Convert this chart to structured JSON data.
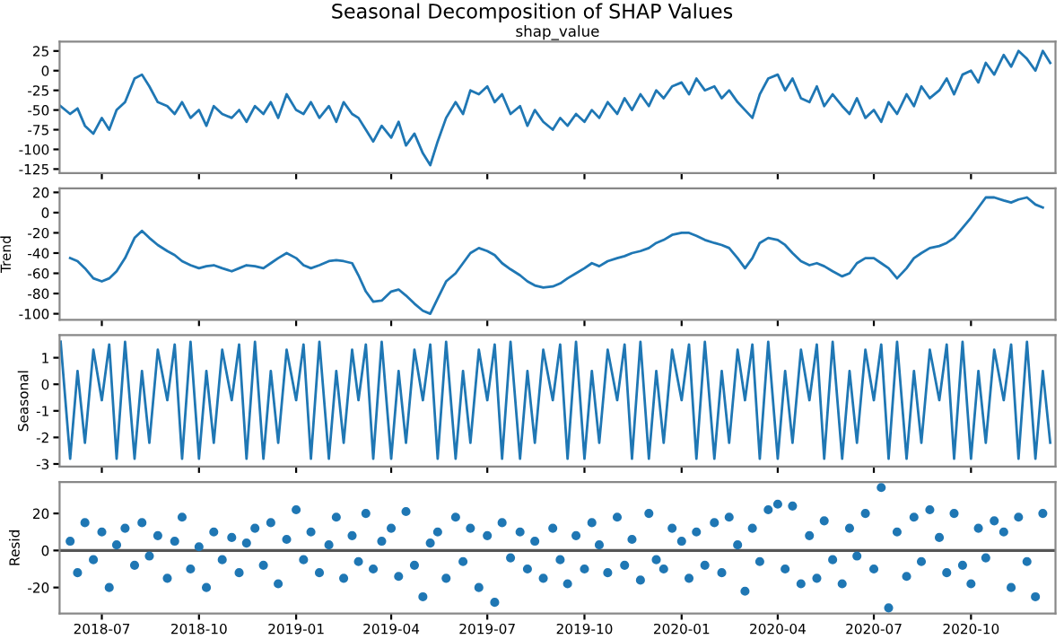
{
  "chart_data": [
    {
      "type": "line",
      "title": "Seasonal Decomposition of SHAP Values",
      "subtitle": "shap_value",
      "tick_labels": "y",
      "grid": false,
      "x": [
        "2018-05-23",
        "2018-06-01",
        "2018-06-08",
        "2018-06-15",
        "2018-06-23",
        "2018-07-01",
        "2018-07-08",
        "2018-07-15",
        "2018-07-23",
        "2018-08-01",
        "2018-08-08",
        "2018-08-15",
        "2018-08-23",
        "2018-09-01",
        "2018-09-08",
        "2018-09-15",
        "2018-09-23",
        "2018-10-01",
        "2018-10-08",
        "2018-10-15",
        "2018-10-23",
        "2018-11-01",
        "2018-11-08",
        "2018-11-15",
        "2018-11-23",
        "2018-12-01",
        "2018-12-08",
        "2018-12-15",
        "2018-12-23",
        "2019-01-01",
        "2019-01-08",
        "2019-01-15",
        "2019-01-23",
        "2019-02-01",
        "2019-02-08",
        "2019-02-15",
        "2019-02-23",
        "2019-03-01",
        "2019-03-08",
        "2019-03-15",
        "2019-03-23",
        "2019-04-01",
        "2019-04-08",
        "2019-04-15",
        "2019-04-23",
        "2019-05-01",
        "2019-05-08",
        "2019-05-15",
        "2019-05-23",
        "2019-06-01",
        "2019-06-08",
        "2019-06-15",
        "2019-06-23",
        "2019-07-01",
        "2019-07-08",
        "2019-07-15",
        "2019-07-23",
        "2019-08-01",
        "2019-08-08",
        "2019-08-15",
        "2019-08-23",
        "2019-09-01",
        "2019-09-08",
        "2019-09-15",
        "2019-09-23",
        "2019-10-01",
        "2019-10-08",
        "2019-10-15",
        "2019-10-23",
        "2019-11-01",
        "2019-11-08",
        "2019-11-15",
        "2019-11-23",
        "2019-12-01",
        "2019-12-08",
        "2019-12-15",
        "2019-12-23",
        "2020-01-01",
        "2020-01-08",
        "2020-01-15",
        "2020-01-23",
        "2020-02-01",
        "2020-02-08",
        "2020-02-15",
        "2020-02-23",
        "2020-03-01",
        "2020-03-08",
        "2020-03-15",
        "2020-03-23",
        "2020-04-01",
        "2020-04-08",
        "2020-04-15",
        "2020-04-23",
        "2020-05-01",
        "2020-05-08",
        "2020-05-15",
        "2020-05-23",
        "2020-06-01",
        "2020-06-08",
        "2020-06-15",
        "2020-06-23",
        "2020-07-01",
        "2020-07-08",
        "2020-07-15",
        "2020-07-23",
        "2020-08-01",
        "2020-08-08",
        "2020-08-15",
        "2020-08-23",
        "2020-09-01",
        "2020-09-08",
        "2020-09-15",
        "2020-09-23",
        "2020-10-01",
        "2020-10-08",
        "2020-10-15",
        "2020-10-23",
        "2020-11-01",
        "2020-11-08",
        "2020-11-15",
        "2020-11-23",
        "2020-12-01",
        "2020-12-08",
        "2020-12-15"
      ],
      "xlim": [
        "2018-05-22",
        "2020-12-20"
      ],
      "ylim": [
        -130,
        37
      ],
      "yticks": [
        -125,
        -100,
        -75,
        -50,
        -25,
        0,
        25
      ],
      "xticks": [
        {
          "value": "2018-07-01",
          "label": null
        },
        {
          "value": "2018-10-01",
          "label": null
        },
        {
          "value": "2019-01-01",
          "label": null
        },
        {
          "value": "2019-04-01",
          "label": null
        },
        {
          "value": "2019-07-01",
          "label": null
        },
        {
          "value": "2019-10-01",
          "label": null
        },
        {
          "value": "2020-01-01",
          "label": null
        },
        {
          "value": "2020-04-01",
          "label": null
        },
        {
          "value": "2020-07-01",
          "label": null
        },
        {
          "value": "2020-10-01",
          "label": null
        }
      ],
      "series": [
        {
          "color": "#1f77b4",
          "values": [
            -45,
            -55,
            -48,
            -70,
            -80,
            -60,
            -75,
            -50,
            -40,
            -10,
            -5,
            -20,
            -40,
            -45,
            -55,
            -40,
            -60,
            -50,
            -70,
            -45,
            -55,
            -60,
            -50,
            -65,
            -45,
            -55,
            -40,
            -60,
            -30,
            -50,
            -55,
            -40,
            -60,
            -45,
            -65,
            -40,
            -55,
            -60,
            -75,
            -90,
            -70,
            -85,
            -65,
            -95,
            -80,
            -105,
            -120,
            -90,
            -60,
            -40,
            -55,
            -25,
            -30,
            -20,
            -40,
            -30,
            -55,
            -45,
            -70,
            -50,
            -65,
            -75,
            -60,
            -70,
            -55,
            -65,
            -50,
            -60,
            -40,
            -55,
            -35,
            -50,
            -30,
            -45,
            -25,
            -35,
            -20,
            -15,
            -30,
            -10,
            -25,
            -20,
            -35,
            -25,
            -40,
            -50,
            -60,
            -30,
            -10,
            -5,
            -25,
            -10,
            -35,
            -40,
            -20,
            -45,
            -30,
            -45,
            -55,
            -35,
            -60,
            -50,
            -65,
            -40,
            -55,
            -30,
            -45,
            -20,
            -35,
            -25,
            -10,
            -30,
            -5,
            0,
            -15,
            10,
            -5,
            20,
            5,
            25,
            15,
            0,
            25,
            10
          ]
        }
      ]
    },
    {
      "type": "line",
      "ylabel": "Trend",
      "tick_labels": "y",
      "grid": false,
      "x": [
        "2018-06-01",
        "2018-06-08",
        "2018-06-15",
        "2018-06-23",
        "2018-07-01",
        "2018-07-08",
        "2018-07-15",
        "2018-07-23",
        "2018-08-01",
        "2018-08-08",
        "2018-08-15",
        "2018-08-23",
        "2018-09-01",
        "2018-09-08",
        "2018-09-15",
        "2018-09-23",
        "2018-10-01",
        "2018-10-08",
        "2018-10-15",
        "2018-10-23",
        "2018-11-01",
        "2018-11-08",
        "2018-11-15",
        "2018-11-23",
        "2018-12-01",
        "2018-12-08",
        "2018-12-15",
        "2018-12-23",
        "2019-01-01",
        "2019-01-08",
        "2019-01-15",
        "2019-01-23",
        "2019-02-01",
        "2019-02-08",
        "2019-02-15",
        "2019-02-23",
        "2019-03-01",
        "2019-03-08",
        "2019-03-15",
        "2019-03-23",
        "2019-04-01",
        "2019-04-08",
        "2019-04-15",
        "2019-04-23",
        "2019-05-01",
        "2019-05-08",
        "2019-05-15",
        "2019-05-23",
        "2019-06-01",
        "2019-06-08",
        "2019-06-15",
        "2019-06-23",
        "2019-07-01",
        "2019-07-08",
        "2019-07-15",
        "2019-07-23",
        "2019-08-01",
        "2019-08-08",
        "2019-08-15",
        "2019-08-23",
        "2019-09-01",
        "2019-09-08",
        "2019-09-15",
        "2019-09-23",
        "2019-10-01",
        "2019-10-08",
        "2019-10-15",
        "2019-10-23",
        "2019-11-01",
        "2019-11-08",
        "2019-11-15",
        "2019-11-23",
        "2019-12-01",
        "2019-12-08",
        "2019-12-15",
        "2019-12-23",
        "2020-01-01",
        "2020-01-08",
        "2020-01-15",
        "2020-01-23",
        "2020-02-01",
        "2020-02-08",
        "2020-02-15",
        "2020-02-23",
        "2020-03-01",
        "2020-03-08",
        "2020-03-15",
        "2020-03-23",
        "2020-04-01",
        "2020-04-08",
        "2020-04-15",
        "2020-04-23",
        "2020-05-01",
        "2020-05-08",
        "2020-05-15",
        "2020-05-23",
        "2020-06-01",
        "2020-06-08",
        "2020-06-15",
        "2020-06-23",
        "2020-07-01",
        "2020-07-08",
        "2020-07-15",
        "2020-07-23",
        "2020-08-01",
        "2020-08-08",
        "2020-08-15",
        "2020-08-23",
        "2020-09-01",
        "2020-09-08",
        "2020-09-15",
        "2020-09-23",
        "2020-10-01",
        "2020-10-08",
        "2020-10-15",
        "2020-10-23",
        "2020-11-01",
        "2020-11-08",
        "2020-11-15",
        "2020-11-23",
        "2020-12-01",
        "2020-12-08"
      ],
      "xlim": [
        "2018-05-22",
        "2020-12-20"
      ],
      "ylim": [
        -106,
        24
      ],
      "yticks": [
        -100,
        -80,
        -60,
        -40,
        -20,
        0,
        20
      ],
      "xticks": [
        {
          "value": "2018-07-01",
          "label": null
        },
        {
          "value": "2018-10-01",
          "label": null
        },
        {
          "value": "2019-01-01",
          "label": null
        },
        {
          "value": "2019-04-01",
          "label": null
        },
        {
          "value": "2019-07-01",
          "label": null
        },
        {
          "value": "2019-10-01",
          "label": null
        },
        {
          "value": "2020-01-01",
          "label": null
        },
        {
          "value": "2020-04-01",
          "label": null
        },
        {
          "value": "2020-07-01",
          "label": null
        },
        {
          "value": "2020-10-01",
          "label": null
        }
      ],
      "series": [
        {
          "color": "#1f77b4",
          "values": [
            -45,
            -48,
            -55,
            -65,
            -68,
            -65,
            -58,
            -45,
            -25,
            -18,
            -25,
            -32,
            -38,
            -42,
            -48,
            -52,
            -55,
            -53,
            -52,
            -55,
            -58,
            -55,
            -52,
            -53,
            -55,
            -50,
            -45,
            -40,
            -45,
            -52,
            -55,
            -52,
            -48,
            -47,
            -48,
            -50,
            -62,
            -78,
            -88,
            -87,
            -78,
            -76,
            -82,
            -90,
            -97,
            -100,
            -85,
            -68,
            -60,
            -50,
            -40,
            -35,
            -38,
            -42,
            -50,
            -56,
            -62,
            -68,
            -72,
            -74,
            -73,
            -70,
            -65,
            -60,
            -55,
            -50,
            -53,
            -48,
            -45,
            -43,
            -40,
            -38,
            -35,
            -30,
            -27,
            -22,
            -20,
            -20,
            -23,
            -27,
            -30,
            -32,
            -35,
            -45,
            -55,
            -45,
            -30,
            -25,
            -27,
            -32,
            -40,
            -48,
            -52,
            -50,
            -53,
            -58,
            -63,
            -60,
            -50,
            -45,
            -45,
            -50,
            -55,
            -65,
            -55,
            -45,
            -40,
            -35,
            -33,
            -30,
            -25,
            -15,
            -5,
            5,
            15,
            15,
            12,
            10,
            13,
            15,
            8,
            5
          ]
        }
      ]
    },
    {
      "type": "line",
      "ylabel": "Seasonal",
      "tick_labels": "y",
      "grid": false,
      "x": [
        "2018-05-23",
        "2018-06-01",
        "2018-06-08",
        "2018-06-15",
        "2018-06-23",
        "2018-07-01",
        "2018-07-08",
        "2018-07-15",
        "2018-07-23",
        "2018-08-01",
        "2018-08-08",
        "2018-08-15",
        "2018-08-23",
        "2018-09-01",
        "2018-09-08",
        "2018-09-15",
        "2018-09-23",
        "2018-10-01",
        "2018-10-08",
        "2018-10-15",
        "2018-10-23",
        "2018-11-01",
        "2018-11-08",
        "2018-11-15",
        "2018-11-23",
        "2018-12-01",
        "2018-12-08",
        "2018-12-15",
        "2018-12-23",
        "2019-01-01",
        "2019-01-08",
        "2019-01-15",
        "2019-01-23",
        "2019-02-01",
        "2019-02-08",
        "2019-02-15",
        "2019-02-23",
        "2019-03-01",
        "2019-03-08",
        "2019-03-15",
        "2019-03-23",
        "2019-04-01",
        "2019-04-08",
        "2019-04-15",
        "2019-04-23",
        "2019-05-01",
        "2019-05-08",
        "2019-05-15",
        "2019-05-23",
        "2019-06-01",
        "2019-06-08",
        "2019-06-15",
        "2019-06-23",
        "2019-07-01",
        "2019-07-08",
        "2019-07-15",
        "2019-07-23",
        "2019-08-01",
        "2019-08-08",
        "2019-08-15",
        "2019-08-23",
        "2019-09-01",
        "2019-09-08",
        "2019-09-15",
        "2019-09-23",
        "2019-10-01",
        "2019-10-08",
        "2019-10-15",
        "2019-10-23",
        "2019-11-01",
        "2019-11-08",
        "2019-11-15",
        "2019-11-23",
        "2019-12-01",
        "2019-12-08",
        "2019-12-15",
        "2019-12-23",
        "2020-01-01",
        "2020-01-08",
        "2020-01-15",
        "2020-01-23",
        "2020-02-01",
        "2020-02-08",
        "2020-02-15",
        "2020-02-23",
        "2020-03-01",
        "2020-03-08",
        "2020-03-15",
        "2020-03-23",
        "2020-04-01",
        "2020-04-08",
        "2020-04-15",
        "2020-04-23",
        "2020-05-01",
        "2020-05-08",
        "2020-05-15",
        "2020-05-23",
        "2020-06-01",
        "2020-06-08",
        "2020-06-15",
        "2020-06-23",
        "2020-07-01",
        "2020-07-08",
        "2020-07-15",
        "2020-07-23",
        "2020-08-01",
        "2020-08-08",
        "2020-08-15",
        "2020-08-23",
        "2020-09-01",
        "2020-09-08",
        "2020-09-15",
        "2020-09-23",
        "2020-10-01",
        "2020-10-08",
        "2020-10-15",
        "2020-10-23",
        "2020-11-01",
        "2020-11-08",
        "2020-11-15",
        "2020-11-23",
        "2020-12-01",
        "2020-12-08",
        "2020-12-15"
      ],
      "xlim": [
        "2018-05-22",
        "2020-12-20"
      ],
      "ylim": [
        -3.1,
        1.85
      ],
      "yticks": [
        -3,
        -2,
        -1,
        0,
        1
      ],
      "xticks": [
        {
          "value": "2018-07-01",
          "label": null
        },
        {
          "value": "2018-10-01",
          "label": null
        },
        {
          "value": "2019-01-01",
          "label": null
        },
        {
          "value": "2019-04-01",
          "label": null
        },
        {
          "value": "2019-07-01",
          "label": null
        },
        {
          "value": "2019-10-01",
          "label": null
        },
        {
          "value": "2020-01-01",
          "label": null
        },
        {
          "value": "2020-04-01",
          "label": null
        },
        {
          "value": "2020-07-01",
          "label": null
        },
        {
          "value": "2020-10-01",
          "label": null
        }
      ],
      "series": [
        {
          "color": "#1f77b4",
          "values": [
            1.6,
            -2.8,
            0.5,
            -2.2,
            1.3,
            -0.6,
            1.5,
            -2.8,
            1.6,
            -2.8,
            0.5,
            -2.2,
            1.3,
            -0.6,
            1.5,
            -2.8,
            1.6,
            -2.8,
            0.5,
            -2.2,
            1.3,
            -0.6,
            1.5,
            -2.8,
            1.6,
            -2.8,
            0.5,
            -2.2,
            1.3,
            -0.6,
            1.5,
            -2.8,
            1.6,
            -2.8,
            0.5,
            -2.2,
            1.3,
            -0.6,
            1.5,
            -2.8,
            1.6,
            -2.8,
            0.5,
            -2.2,
            1.3,
            -0.6,
            1.5,
            -2.8,
            1.6,
            -2.8,
            0.5,
            -2.2,
            1.3,
            -0.6,
            1.5,
            -2.8,
            1.6,
            -2.8,
            0.5,
            -2.2,
            1.3,
            -0.6,
            1.5,
            -2.8,
            1.6,
            -2.8,
            0.5,
            -2.2,
            1.3,
            -0.6,
            1.5,
            -2.8,
            1.6,
            -2.8,
            0.5,
            -2.2,
            1.3,
            -0.6,
            1.5,
            -2.8,
            1.6,
            -2.8,
            0.5,
            -2.2,
            1.3,
            -0.6,
            1.5,
            -2.8,
            1.6,
            -2.8,
            0.5,
            -2.2,
            1.3,
            -0.6,
            1.5,
            -2.8,
            1.6,
            -2.8,
            0.5,
            -2.2,
            1.3,
            -0.6,
            1.5,
            -2.8,
            1.6,
            -2.8,
            0.5,
            -2.2,
            1.3,
            -0.6,
            1.5,
            -2.8,
            1.6,
            -2.8,
            0.5,
            -2.2,
            1.3,
            -0.6,
            1.5,
            -2.8,
            1.6,
            -2.8,
            0.5,
            -2.2
          ]
        }
      ]
    },
    {
      "type": "scatter",
      "ylabel": "Resid",
      "marker": "circle",
      "grid": false,
      "x": [
        "2018-06-01",
        "2018-06-08",
        "2018-06-15",
        "2018-06-23",
        "2018-07-01",
        "2018-07-08",
        "2018-07-15",
        "2018-07-23",
        "2018-08-01",
        "2018-08-08",
        "2018-08-15",
        "2018-08-23",
        "2018-09-01",
        "2018-09-08",
        "2018-09-15",
        "2018-09-23",
        "2018-10-01",
        "2018-10-08",
        "2018-10-15",
        "2018-10-23",
        "2018-11-01",
        "2018-11-08",
        "2018-11-15",
        "2018-11-23",
        "2018-12-01",
        "2018-12-08",
        "2018-12-15",
        "2018-12-23",
        "2019-01-01",
        "2019-01-08",
        "2019-01-15",
        "2019-01-23",
        "2019-02-01",
        "2019-02-08",
        "2019-02-15",
        "2019-02-23",
        "2019-03-01",
        "2019-03-08",
        "2019-03-15",
        "2019-03-23",
        "2019-04-01",
        "2019-04-08",
        "2019-04-15",
        "2019-04-23",
        "2019-05-01",
        "2019-05-08",
        "2019-05-15",
        "2019-05-23",
        "2019-06-01",
        "2019-06-08",
        "2019-06-15",
        "2019-06-23",
        "2019-07-01",
        "2019-07-08",
        "2019-07-15",
        "2019-07-23",
        "2019-08-01",
        "2019-08-08",
        "2019-08-15",
        "2019-08-23",
        "2019-09-01",
        "2019-09-08",
        "2019-09-15",
        "2019-09-23",
        "2019-10-01",
        "2019-10-08",
        "2019-10-15",
        "2019-10-23",
        "2019-11-01",
        "2019-11-08",
        "2019-11-15",
        "2019-11-23",
        "2019-12-01",
        "2019-12-08",
        "2019-12-15",
        "2019-12-23",
        "2020-01-01",
        "2020-01-08",
        "2020-01-15",
        "2020-01-23",
        "2020-02-01",
        "2020-02-08",
        "2020-02-15",
        "2020-02-23",
        "2020-03-01",
        "2020-03-08",
        "2020-03-15",
        "2020-03-23",
        "2020-04-01",
        "2020-04-08",
        "2020-04-15",
        "2020-04-23",
        "2020-05-01",
        "2020-05-08",
        "2020-05-15",
        "2020-05-23",
        "2020-06-01",
        "2020-06-08",
        "2020-06-15",
        "2020-06-23",
        "2020-07-01",
        "2020-07-08",
        "2020-07-15",
        "2020-07-23",
        "2020-08-01",
        "2020-08-08",
        "2020-08-15",
        "2020-08-23",
        "2020-09-01",
        "2020-09-08",
        "2020-09-15",
        "2020-09-23",
        "2020-10-01",
        "2020-10-08",
        "2020-10-15",
        "2020-10-23",
        "2020-11-01",
        "2020-11-08",
        "2020-11-15",
        "2020-11-23",
        "2020-12-01",
        "2020-12-08"
      ],
      "xlim": [
        "2018-05-22",
        "2020-12-20"
      ],
      "ylim": [
        -34,
        37
      ],
      "yticks": [
        -20,
        0,
        20
      ],
      "xticks": [
        {
          "value": "2018-07-01",
          "label": "2018-07"
        },
        {
          "value": "2018-10-01",
          "label": "2018-10"
        },
        {
          "value": "2019-01-01",
          "label": "2019-01"
        },
        {
          "value": "2019-04-01",
          "label": "2019-04"
        },
        {
          "value": "2019-07-01",
          "label": "2019-07"
        },
        {
          "value": "2019-10-01",
          "label": "2019-10"
        },
        {
          "value": "2020-01-01",
          "label": "2020-01"
        },
        {
          "value": "2020-04-01",
          "label": "2020-04"
        },
        {
          "value": "2020-07-01",
          "label": "2020-07"
        },
        {
          "value": "2020-10-01",
          "label": "2020-10"
        }
      ],
      "ref_lines": [
        {
          "axis": "y",
          "value": 0,
          "color": "#555555"
        }
      ],
      "series": [
        {
          "color": "#1f77b4",
          "values": [
            5,
            -12,
            15,
            -5,
            10,
            -20,
            3,
            12,
            -8,
            15,
            -3,
            8,
            -15,
            5,
            18,
            -10,
            2,
            -20,
            10,
            -5,
            7,
            -12,
            4,
            12,
            -8,
            15,
            -18,
            6,
            22,
            -5,
            10,
            -12,
            3,
            18,
            -15,
            8,
            -6,
            20,
            -10,
            5,
            12,
            -14,
            21,
            -8,
            -25,
            4,
            10,
            -15,
            18,
            -6,
            12,
            -20,
            8,
            -28,
            15,
            -4,
            10,
            -10,
            5,
            -15,
            12,
            -5,
            -18,
            8,
            -10,
            15,
            3,
            -12,
            18,
            -8,
            6,
            -16,
            20,
            -5,
            -10,
            12,
            5,
            -15,
            10,
            -8,
            15,
            -12,
            18,
            3,
            -22,
            12,
            -6,
            22,
            25,
            -10,
            24,
            -18,
            8,
            -15,
            16,
            -5,
            -18,
            12,
            -3,
            20,
            -10,
            34,
            -31,
            10,
            -14,
            18,
            -6,
            22,
            7,
            -12,
            20,
            -8,
            -18,
            12,
            -4,
            16,
            10,
            -20,
            18,
            -6,
            -25,
            20
          ]
        }
      ]
    }
  ]
}
